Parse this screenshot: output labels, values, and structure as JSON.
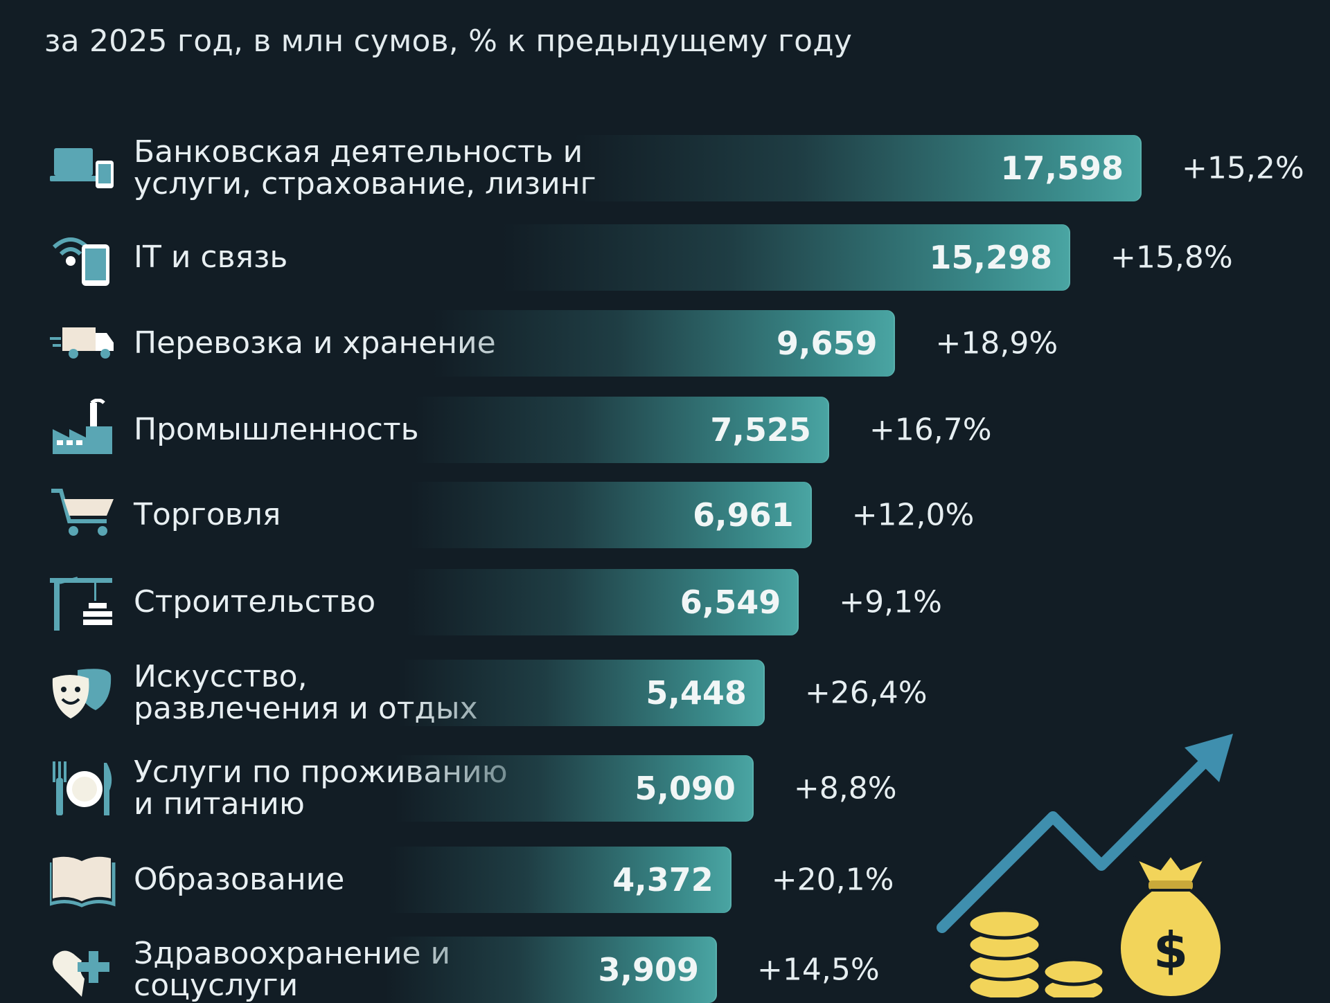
{
  "subtitle": "за 2025 год, в млн сумов, % к предыдущему году",
  "colors": {
    "background": "#121d25",
    "bar": "#3a8a8a",
    "icon": "#5aa6b4",
    "coin": "#f2d45a"
  },
  "chart_data": {
    "type": "bar",
    "orientation": "horizontal",
    "title": "",
    "subtitle": "за 2025 год, в млн сумов, % к предыдущему году",
    "categories": [
      "Банковская деятельность и\nуслуги, страхование, лизинг",
      "IT и связь",
      "Перевозка и хранение",
      "Промышленность",
      "Торговля",
      "Строительство",
      "Искусство,\nразвлечения и отдых",
      "Услуги по проживанию\nи питанию",
      "Образование",
      "Здравоохранение и\nсоцуслуги"
    ],
    "values": [
      17598,
      15298,
      9659,
      7525,
      6961,
      6549,
      5448,
      5090,
      4372,
      3909
    ],
    "value_labels": [
      "17,598",
      "15,298",
      "9,659",
      "7,525",
      "6,961",
      "6,549",
      "5,448",
      "5,090",
      "4,372",
      "3,909"
    ],
    "change_labels": [
      "+15,2%",
      "+15,8%",
      "+18,9%",
      "+16,7%",
      "+12,0%",
      "+9,1%",
      "+26,4%",
      "+8,8%",
      "+20,1%",
      "+14,5%"
    ],
    "icons": [
      "laptop-phone-icon",
      "wifi-phone-icon",
      "truck-icon",
      "factory-icon",
      "shopping-cart-icon",
      "crane-icon",
      "theater-masks-icon",
      "plate-cutlery-icon",
      "open-book-icon",
      "heart-plus-icon"
    ],
    "grid": false,
    "legend": "none"
  }
}
